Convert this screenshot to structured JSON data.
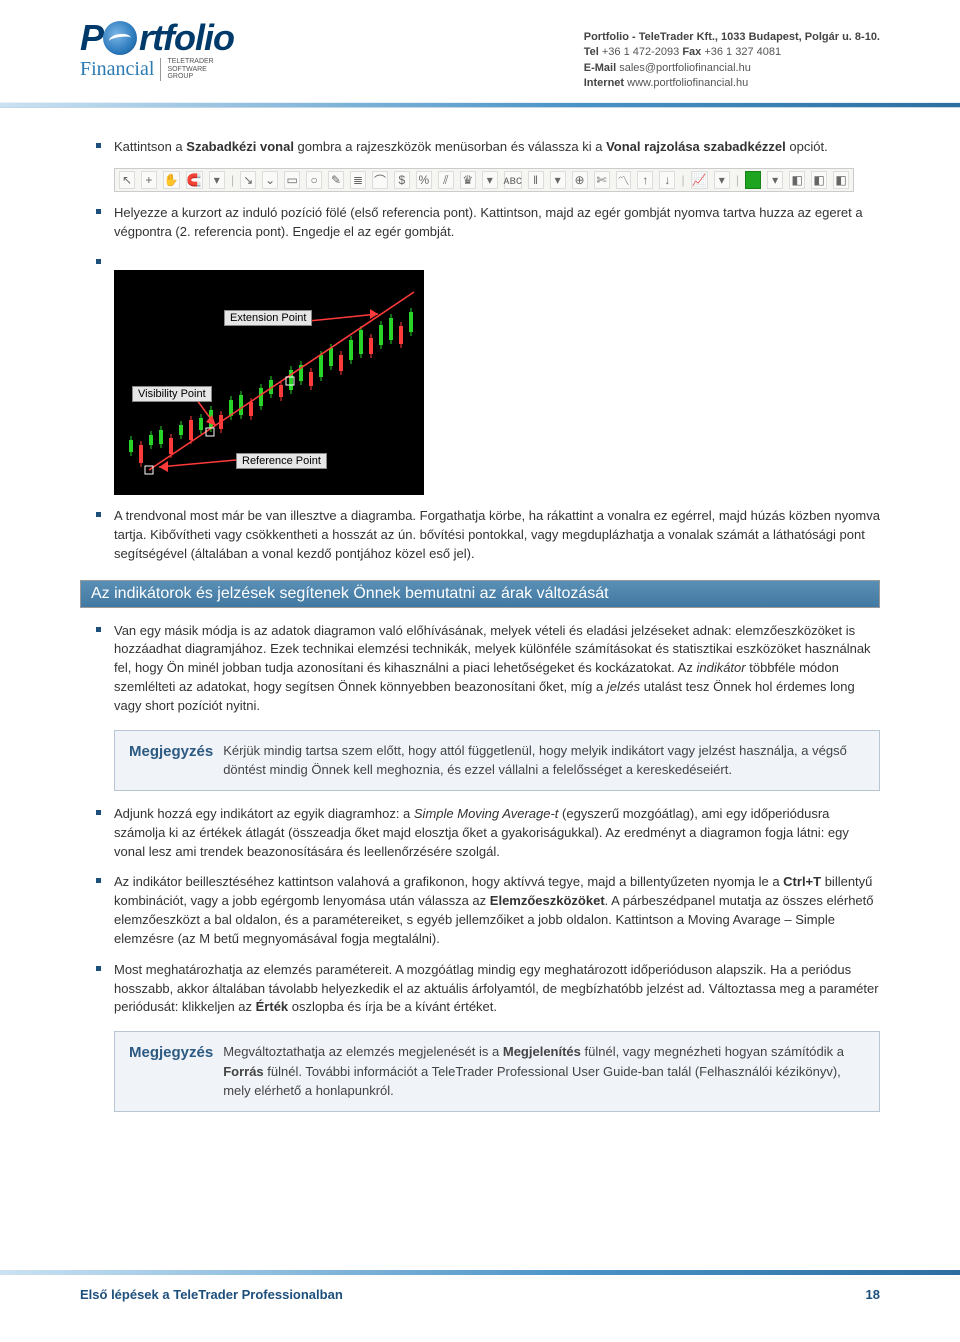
{
  "header": {
    "logo_main_part1": "P",
    "logo_main_part2": "rtfolio",
    "logo_sub": "Financial",
    "tt_line1": "TELETRADER",
    "tt_line2": "SOFTWARE",
    "tt_line3": "GROUP",
    "contact_company": "Portfolio - TeleTrader Kft., 1033 Budapest, Polgár u. 8-10.",
    "contact_phone_label": "Tel",
    "contact_phone": " +36 1 472-2093   ",
    "contact_fax_label": "Fax",
    "contact_fax": " +36 1 327 4081",
    "contact_email_label": "E-Mail",
    "contact_email": "   sales@portfoliofinancial.hu",
    "contact_web_label": "Internet",
    "contact_web": "  www.portfoliofinancial.hu"
  },
  "bullets": {
    "b1_pre": "Kattintson a ",
    "b1_bold1": "Szabadkézi vonal",
    "b1_mid": " gombra a rajzeszközök menüsorban és válassza ki a ",
    "b1_bold2": "Vonal rajzolása szabadkézzel",
    "b1_post": " opciót.",
    "b2": "Helyezze a kurzort az induló pozíció fölé (első referencia pont). Kattintson, majd az egér gombját nyomva tartva huzza az egeret a végpontra (2. referencia pont). Engedje el az egér gombját.",
    "b3": "A trendvonal most már be van illesztve a diagramba. Forgathatja körbe, ha rákattint a vonalra ez egérrel, majd húzás közben nyomva tartja. Kibővítheti vagy csökkentheti a hosszát az ún. bővítési pontokkal, vagy megduplázhatja a vonalak számát a láthatósági pont segítségével (általában a vonal kezdő pontjához közel eső jel).",
    "b4_pre": "Van egy másik módja is az adatok diagramon való előhívásának, melyek vételi és eladási jelzéseket adnak: elemzőeszközöket is hozzáadhat diagramjához. Ezek technikai elemzési technikák, melyek különféle számításokat és statisztikai eszközöket használnak fel, hogy Ön minél jobban tudja azonosítani és kihasználni a piaci lehetőségeket és kockázatokat. Az ",
    "b4_i1": "indikátor",
    "b4_mid": " többféle módon szemlélteti az adatokat, hogy segítsen Önnek könnyebben beazonosítani őket, míg a ",
    "b4_i2": "jelzés",
    "b4_post": " utalást tesz Önnek hol érdemes long vagy short pozíciót nyitni.",
    "b5_pre": "Adjunk hozzá egy indikátort az egyik diagramhoz: a ",
    "b5_i": "Simple Moving Average-t",
    "b5_post": " (egyszerű mozgóátlag), ami egy időperiódusra számolja ki az értékek átlagát (összeadja őket majd elosztja őket a gyakoriságukkal). Az eredményt a diagramon fogja látni: egy vonal lesz ami trendek beazonosítására és leellenőrzésére szolgál.",
    "b6_pre": "Az indikátor beillesztéséhez kattintson valahová a grafikonon, hogy aktívvá tegye, majd a  billentyűzeten nyomja le a ",
    "b6_bold1": "Ctrl+T",
    "b6_mid1": " billentyű kombinációt, vagy a jobb egérgomb lenyomása után válassza az ",
    "b6_bold2": "Elemzőeszközöket",
    "b6_mid2": ". A párbeszédpanel mutatja az összes elérhető elemzőeszközt a bal oldalon, és a paramétereiket, s egyéb jellemzőiket a jobb oldalon. Kattintson a Moving Avarage – Simple elemzésre (az M betű megnyomásával fogja megtalálni).",
    "b7_pre": "Most meghatározhatja az elemzés paramétereit. A mozgóátlag mindig egy meghatározott időperióduson alapszik. Ha a periódus hosszabb, akkor általában távolabb helyezkedik el az aktuális árfolyamtól, de megbízhatóbb jelzést ad. Változtassa meg a paraméter periódusát: klikkeljen az ",
    "b7_bold": "Érték",
    "b7_post": " oszlopba és írja be a kívánt értéket."
  },
  "chart_labels": {
    "ext": "Extension Point",
    "vis": "Visibility Point",
    "ref": "Reference Point"
  },
  "chart_style": {
    "background": "#000000",
    "candle_up": "#28d428",
    "candle_down": "#ff3a3a",
    "trendline_color": "#ff3a3a",
    "handle_color": "#ffffff"
  },
  "section_title": "Az indikátorok és jelzések segítenek Önnek bemutatni az árak változását",
  "notes": {
    "label": "Megjegyzés",
    "n1": "Kérjük mindig tartsa szem előtt, hogy attól függetlenül, hogy melyik indikátort vagy jelzést használja, a végső döntést mindig Önnek kell meghoznia, és ezzel vállalni a felelősséget a kereskedéseiért.",
    "n2_pre": "Megváltoztathatja az elemzés megjelenését is a ",
    "n2_b1": "Megjelenítés",
    "n2_mid1": " fülnél, vagy megnézheti hogyan számítódik a ",
    "n2_b2": "Forrás",
    "n2_mid2": " fülnél. További információt a TeleTrader Professional User Guide-ban talál (Felhasználói kézikönyv), mely elérhető a honlapunkról."
  },
  "toolbar": {
    "icons": [
      "↖",
      "+",
      "✋",
      "🧲",
      "▾",
      "",
      "↘",
      "⌄",
      "▭",
      "○",
      "✎",
      "≣",
      "⌒",
      "$",
      "%",
      "⫽",
      "♛",
      "▾",
      "ᴀʙᴄ",
      "‖",
      "▾",
      "⊕",
      "✄",
      "〽",
      "↑",
      "↓",
      "",
      "📈",
      "▾",
      "",
      "",
      "▾",
      "◧",
      "◧",
      "◧"
    ],
    "green_index": 30,
    "sep_indices": [
      5,
      26,
      29
    ]
  },
  "footer": {
    "title": "Első lépések a TeleTrader Professionalban",
    "page": "18"
  }
}
